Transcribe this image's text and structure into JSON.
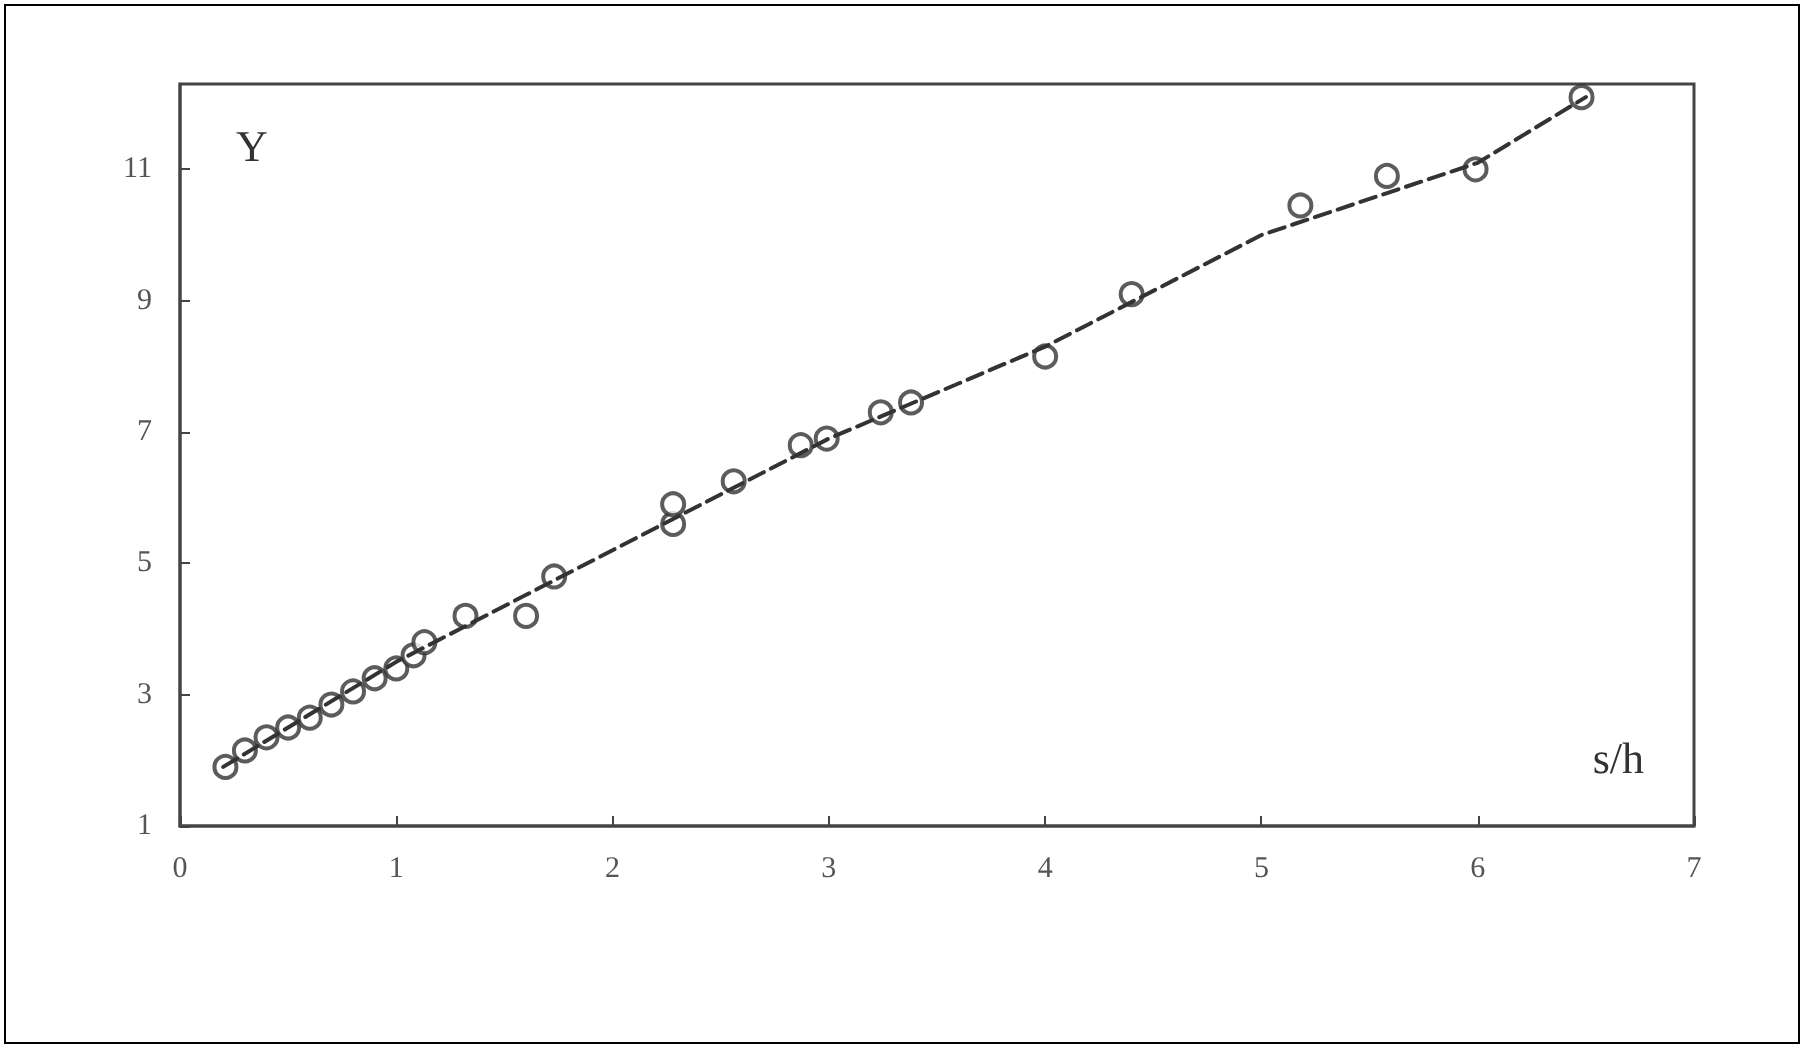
{
  "chart_data": {
    "type": "scatter",
    "xlabel": "s/h",
    "ylabel": "Y",
    "xlim": [
      0,
      7
    ],
    "xticks": [
      0,
      1,
      2,
      3,
      4,
      5,
      6,
      7
    ],
    "ylim": [
      1,
      12.3
    ],
    "yticks": [
      1,
      3,
      5,
      7,
      9,
      11
    ],
    "grid": false,
    "series": [
      {
        "marker": "circle",
        "color": "#333333",
        "x": [
          0.21,
          0.3,
          0.4,
          0.5,
          0.6,
          0.7,
          0.8,
          0.9,
          1.0,
          1.08,
          1.13,
          1.32,
          1.6,
          1.73,
          2.28,
          2.28,
          2.56,
          2.87,
          2.99,
          3.24,
          3.38,
          4.0,
          4.4,
          5.18,
          5.58,
          5.99,
          6.48
        ],
        "values": [
          1.9,
          2.15,
          2.35,
          2.5,
          2.65,
          2.85,
          3.05,
          3.25,
          3.4,
          3.6,
          3.8,
          4.2,
          4.2,
          4.8,
          5.6,
          5.9,
          6.25,
          6.8,
          6.9,
          7.3,
          7.45,
          8.15,
          9.1,
          10.45,
          10.9,
          11.0,
          12.1
        ]
      },
      {
        "type": "line",
        "line_style": "dashed",
        "marker": "none",
        "color": "#333333",
        "x": [
          0.2,
          1.0,
          2.0,
          3.0,
          4.0,
          5.0,
          6.0,
          6.5
        ],
        "values": [
          1.9,
          3.5,
          5.2,
          6.9,
          8.3,
          10.0,
          11.1,
          12.1
        ]
      }
    ]
  }
}
